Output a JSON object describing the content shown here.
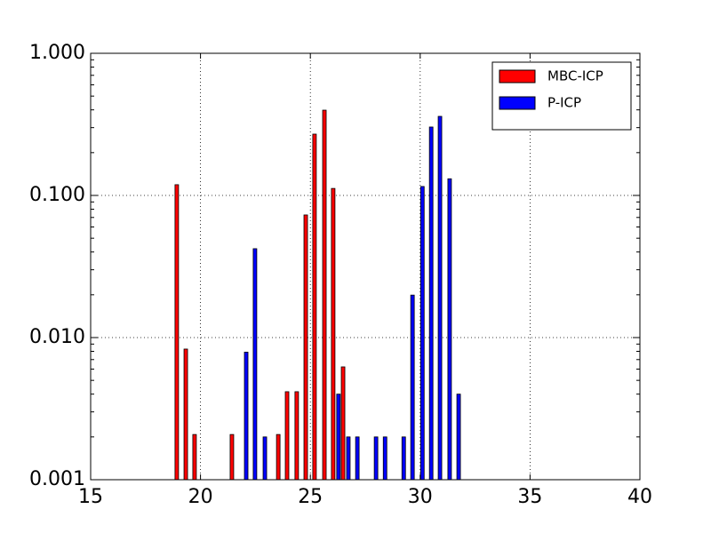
{
  "chart_data": {
    "type": "bar",
    "series": [
      {
        "name": "MBC-ICP",
        "color": "#ff0000",
        "x": [
          18.92,
          19.33,
          19.73,
          21.43,
          23.54,
          23.94,
          24.38,
          24.79,
          25.19,
          25.64,
          26.04,
          26.49
        ],
        "values": [
          0.119,
          0.0083,
          0.00208,
          0.00208,
          0.00208,
          0.00416,
          0.00416,
          0.0729,
          0.27,
          0.398,
          0.112,
          0.00622
        ]
      },
      {
        "name": "P-ICP",
        "color": "#0000ff",
        "x": [
          22.08,
          22.48,
          22.93,
          26.28,
          26.73,
          27.14,
          27.99,
          28.4,
          29.25,
          29.65,
          30.1,
          30.5,
          30.9,
          31.34,
          31.75
        ],
        "values": [
          0.0079,
          0.0422,
          0.002,
          0.004,
          0.002,
          0.002,
          0.002,
          0.002,
          0.002,
          0.0199,
          0.1156,
          0.303,
          0.36,
          0.131,
          0.004
        ]
      }
    ],
    "xlim": [
      15,
      40
    ],
    "xticks": [
      15,
      20,
      25,
      30,
      35,
      40
    ],
    "ylim": [
      0.001,
      1
    ],
    "yticks": [
      {
        "value": 0.001,
        "label": "0.001"
      },
      {
        "value": 0.01,
        "label": "0.010"
      },
      {
        "value": 0.1,
        "label": "0.100"
      },
      {
        "value": 1,
        "label": "1.000"
      }
    ],
    "y_log": true,
    "grid": true,
    "legend": "upper right"
  }
}
